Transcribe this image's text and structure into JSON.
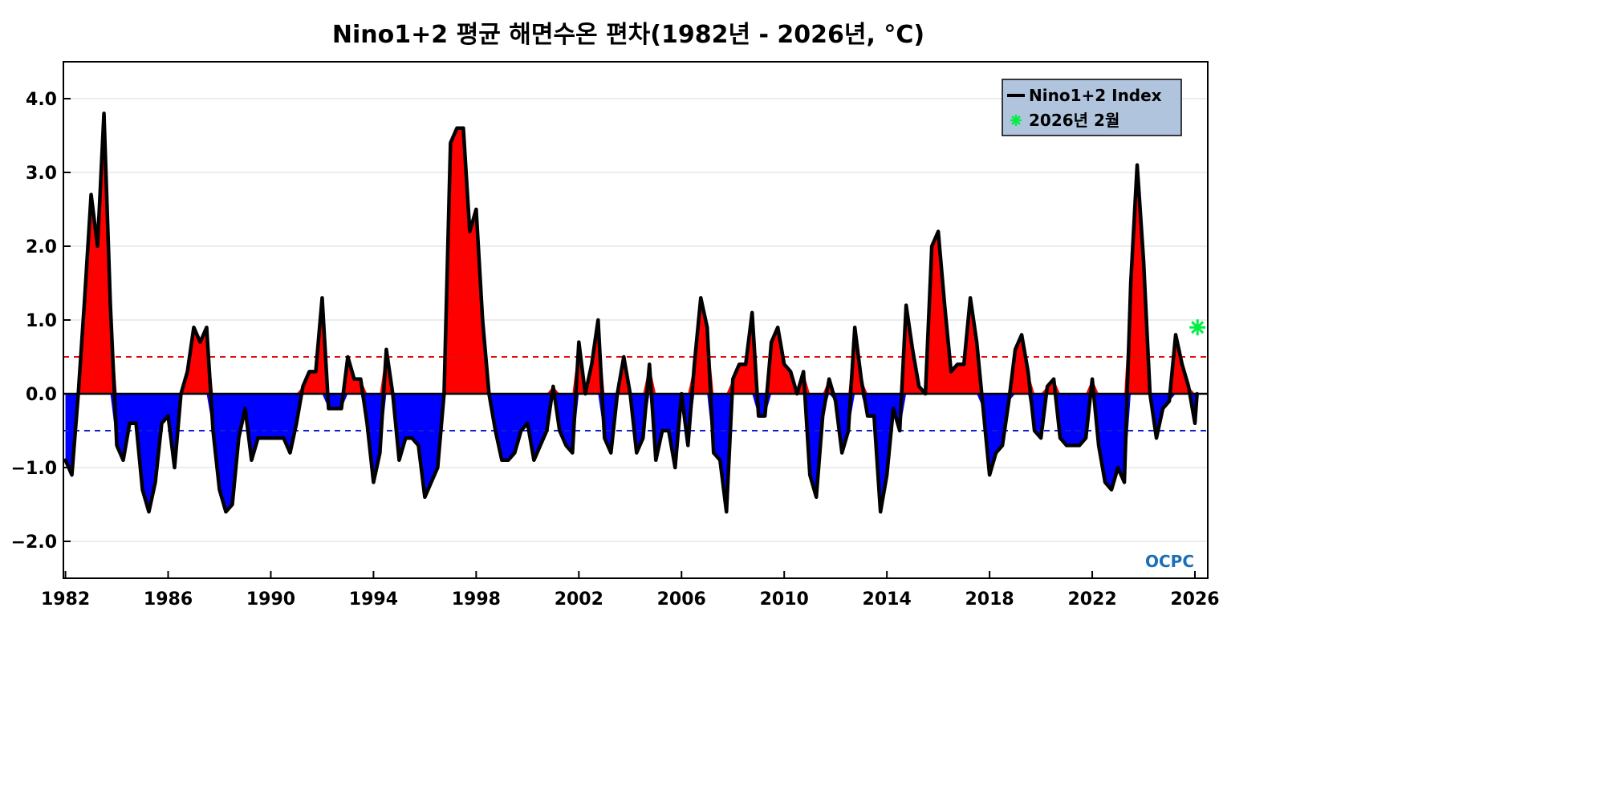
{
  "chart_data": {
    "type": "area",
    "title": "Nino1+2 평균 해면수온 편차(1982년 - 2026년, °C)",
    "xlabel": "",
    "ylabel": "",
    "xlim": [
      1981.92,
      2026.5
    ],
    "ylim": [
      -2.5,
      4.5
    ],
    "x_ticks": [
      1982,
      1986,
      1990,
      1994,
      1998,
      2002,
      2006,
      2010,
      2014,
      2018,
      2022,
      2026
    ],
    "y_ticks": [
      -2.0,
      -1.0,
      0.0,
      1.0,
      2.0,
      3.0,
      4.0
    ],
    "y_tick_labels": [
      "−2.0",
      "−1.0",
      "0.0",
      "1.0",
      "2.0",
      "3.0",
      "4.0"
    ],
    "grid": true,
    "thresholds": [
      {
        "value": 0.5,
        "color": "#e01010",
        "style": "dashed"
      },
      {
        "value": -0.5,
        "color": "#1020d0",
        "style": "dashed"
      }
    ],
    "series": [
      {
        "name": "Nino1+2 Index",
        "color": "#000000",
        "positive_fill": "#ff0000",
        "negative_fill": "#0000ff",
        "x": [
          1982.0,
          1982.25,
          1982.5,
          1982.75,
          1983.0,
          1983.25,
          1983.5,
          1983.75,
          1984.0,
          1984.25,
          1984.5,
          1984.75,
          1985.0,
          1985.25,
          1985.5,
          1985.75,
          1986.0,
          1986.25,
          1986.5,
          1986.75,
          1987.0,
          1987.25,
          1987.5,
          1987.75,
          1988.0,
          1988.25,
          1988.5,
          1988.75,
          1989.0,
          1989.25,
          1989.5,
          1989.75,
          1990.0,
          1990.25,
          1990.5,
          1990.75,
          1991.0,
          1991.25,
          1991.5,
          1991.75,
          1992.0,
          1992.25,
          1992.5,
          1992.75,
          1993.0,
          1993.25,
          1993.5,
          1993.75,
          1994.0,
          1994.25,
          1994.5,
          1994.75,
          1995.0,
          1995.25,
          1995.5,
          1995.75,
          1996.0,
          1996.25,
          1996.5,
          1996.75,
          1997.0,
          1997.25,
          1997.5,
          1997.75,
          1998.0,
          1998.25,
          1998.5,
          1998.75,
          1999.0,
          1999.25,
          1999.5,
          1999.75,
          2000.0,
          2000.25,
          2000.5,
          2000.75,
          2001.0,
          2001.25,
          2001.5,
          2001.75,
          2002.0,
          2002.25,
          2002.5,
          2002.75,
          2003.0,
          2003.25,
          2003.5,
          2003.75,
          2004.0,
          2004.25,
          2004.5,
          2004.75,
          2005.0,
          2005.25,
          2005.5,
          2005.75,
          2006.0,
          2006.25,
          2006.5,
          2006.75,
          2007.0,
          2007.25,
          2007.5,
          2007.75,
          2008.0,
          2008.25,
          2008.5,
          2008.75,
          2009.0,
          2009.25,
          2009.5,
          2009.75,
          2010.0,
          2010.25,
          2010.5,
          2010.75,
          2011.0,
          2011.25,
          2011.5,
          2011.75,
          2012.0,
          2012.25,
          2012.5,
          2012.75,
          2013.0,
          2013.25,
          2013.5,
          2013.75,
          2014.0,
          2014.25,
          2014.5,
          2014.75,
          2015.0,
          2015.25,
          2015.5,
          2015.75,
          2016.0,
          2016.25,
          2016.5,
          2016.75,
          2017.0,
          2017.25,
          2017.5,
          2017.75,
          2018.0,
          2018.25,
          2018.5,
          2018.75,
          2019.0,
          2019.25,
          2019.5,
          2019.75,
          2020.0,
          2020.25,
          2020.5,
          2020.75,
          2021.0,
          2021.25,
          2021.5,
          2021.75,
          2022.0,
          2022.25,
          2022.5,
          2022.75,
          2023.0,
          2023.25,
          2023.5,
          2023.75,
          2024.0,
          2024.25,
          2024.5,
          2024.75,
          2025.0,
          2025.25,
          2025.5,
          2025.75,
          2026.0,
          2026.083
        ],
        "values": [
          -0.9,
          -1.1,
          0.0,
          1.3,
          2.7,
          2.0,
          3.8,
          1.2,
          -0.7,
          -0.9,
          -0.4,
          -0.4,
          -1.3,
          -1.6,
          -1.2,
          -0.4,
          -0.3,
          -1.0,
          0.0,
          0.3,
          0.9,
          0.7,
          0.9,
          -0.5,
          -1.3,
          -1.6,
          -1.5,
          -0.6,
          -0.2,
          -0.9,
          -0.6,
          -0.6,
          -0.6,
          -0.6,
          -0.6,
          -0.8,
          -0.4,
          0.1,
          0.3,
          0.3,
          1.3,
          -0.2,
          -0.2,
          -0.2,
          0.5,
          0.2,
          0.2,
          -0.4,
          -1.2,
          -0.8,
          0.6,
          0.0,
          -0.9,
          -0.6,
          -0.6,
          -0.7,
          -1.4,
          -1.2,
          -1.0,
          0.0,
          3.4,
          3.6,
          3.6,
          2.2,
          2.5,
          1.0,
          0.0,
          -0.5,
          -0.9,
          -0.9,
          -0.8,
          -0.5,
          -0.4,
          -0.9,
          -0.7,
          -0.5,
          0.1,
          -0.5,
          -0.7,
          -0.8,
          0.7,
          0.0,
          0.4,
          1.0,
          -0.6,
          -0.8,
          0.0,
          0.5,
          0.0,
          -0.8,
          -0.6,
          0.4,
          -0.9,
          -0.5,
          -0.5,
          -1.0,
          0.0,
          -0.7,
          0.4,
          1.3,
          0.9,
          -0.8,
          -0.9,
          -1.6,
          0.2,
          0.4,
          0.4,
          1.1,
          -0.3,
          -0.3,
          0.7,
          0.9,
          0.4,
          0.3,
          0.0,
          0.3,
          -1.1,
          -1.4,
          -0.3,
          0.2,
          -0.1,
          -0.8,
          -0.5,
          0.9,
          0.2,
          -0.3,
          -0.3,
          -1.6,
          -1.1,
          -0.2,
          -0.5,
          1.2,
          0.6,
          0.1,
          0.0,
          2.0,
          2.2,
          1.2,
          0.3,
          0.4,
          0.4,
          1.3,
          0.7,
          -0.2,
          -1.1,
          -0.8,
          -0.7,
          -0.1,
          0.6,
          0.8,
          0.3,
          -0.5,
          -0.6,
          0.1,
          0.2,
          -0.6,
          -0.7,
          -0.7,
          -0.7,
          -0.6,
          0.2,
          -0.7,
          -1.2,
          -1.3,
          -1.0,
          -1.2,
          1.5,
          3.1,
          1.8,
          0.0,
          -0.6,
          -0.2,
          -0.1,
          0.8,
          0.4,
          0.1,
          -0.4,
          0.0
        ]
      }
    ],
    "marker": {
      "name": "2026년 2월",
      "x": 2026.1,
      "y": 0.9,
      "color": "#00ee44",
      "symbol": "asterisk"
    },
    "legend": {
      "placement": "top-right",
      "background": "#b0c4de"
    },
    "watermark": "OCPC"
  }
}
